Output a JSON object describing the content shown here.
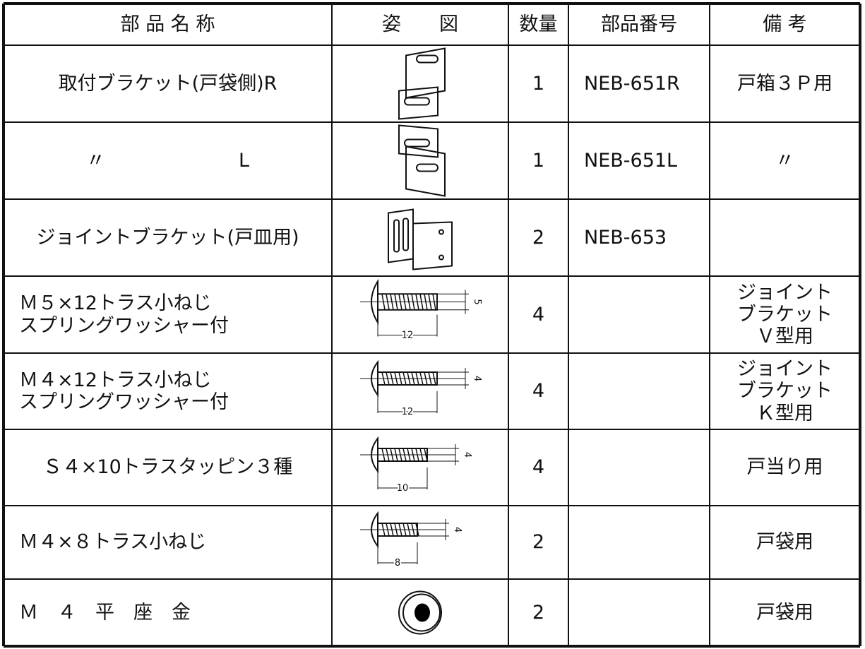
{
  "table": {
    "header": [
      "部 品 名 称",
      "姿　　図",
      "数量",
      "部品番号",
      "備 考"
    ],
    "rows": [
      {
        "name": [
          "取付ブラケット(戸袋側)R"
        ],
        "figure": {
          "kind": "bracket-r"
        },
        "quantity": "1",
        "part_number": "NEB-651R",
        "remarks": [
          "戸箱３Ｐ用"
        ]
      },
      {
        "name": [
          "〃　　　　　　　L"
        ],
        "figure": {
          "kind": "bracket-l"
        },
        "quantity": "1",
        "part_number": "NEB-651L",
        "remarks": [
          "〃"
        ]
      },
      {
        "name": [
          "ジョイントブラケット(戸皿用)"
        ],
        "figure": {
          "kind": "joint"
        },
        "quantity": "2",
        "part_number": "NEB-653"
      },
      {
        "name": [
          "Ｍ５×12トラス小ねじ",
          "スプリングワッシャー付"
        ],
        "figure": {
          "kind": "screw",
          "length": "12",
          "diameter": "5"
        },
        "quantity": "4",
        "remarks": [
          "ジョイント",
          "ブラケット",
          "Ｖ型用"
        ]
      },
      {
        "name": [
          "Ｍ４×12トラス小ねじ",
          "スプリングワッシャー付"
        ],
        "figure": {
          "kind": "screw",
          "length": "12",
          "diameter": "4"
        },
        "quantity": "4",
        "remarks": [
          "ジョイント",
          "ブラケット",
          "Ｋ型用"
        ]
      },
      {
        "name": [
          "Ｓ４×10トラスタッピン３種"
        ],
        "figure": {
          "kind": "screw",
          "length": "10",
          "diameter": "4"
        },
        "quantity": "4",
        "remarks": [
          "戸当り用"
        ]
      },
      {
        "name": [
          "Ｍ４×８トラス小ねじ"
        ],
        "figure": {
          "kind": "screw",
          "length": "8",
          "diameter": "4"
        },
        "quantity": "2",
        "remarks": [
          "戸袋用"
        ]
      },
      {
        "name": [
          "Ｍ　４　平　座　金"
        ],
        "figure": {
          "kind": "washer"
        },
        "quantity": "2",
        "remarks": [
          "戸袋用"
        ]
      }
    ]
  }
}
